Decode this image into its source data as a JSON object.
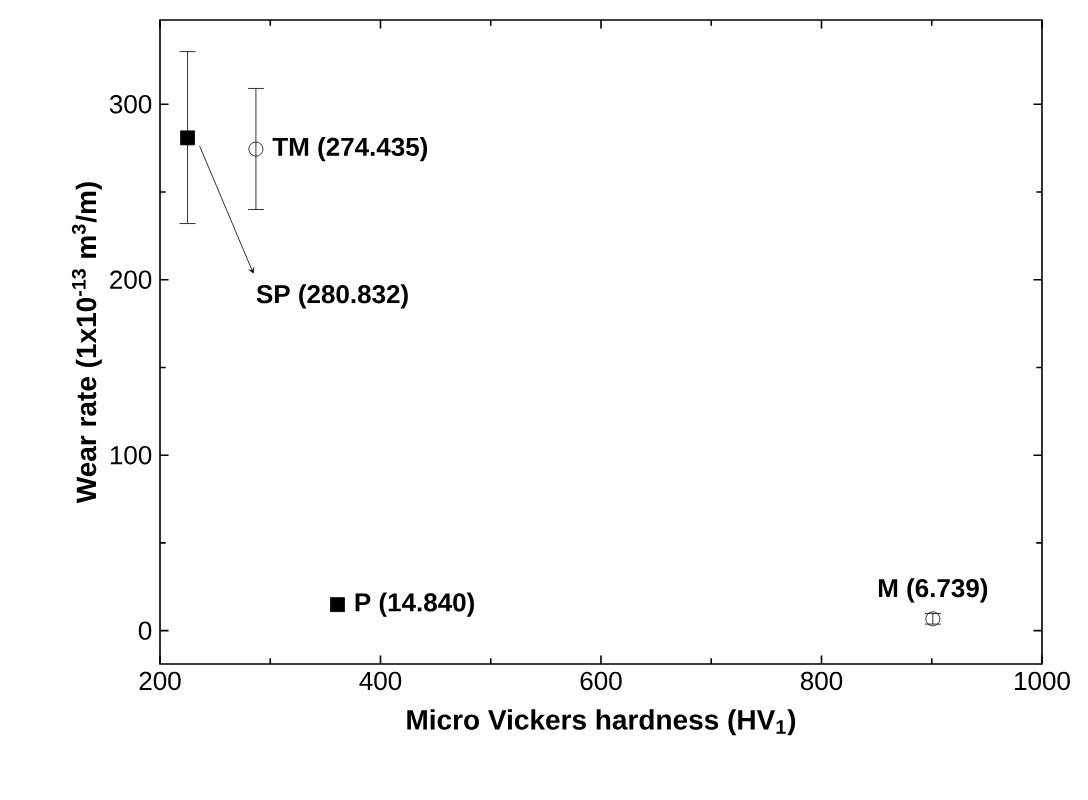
{
  "chart_data": {
    "type": "scatter",
    "xlabel": "Micro Vickers hardness (HV$_{1}$)",
    "ylabel": "Wear rate (1x10$^{-13}$ m$^{3}$/m)",
    "xlim": [
      200,
      1000
    ],
    "ylim": [
      -19,
      348
    ],
    "xticks": [
      200,
      400,
      600,
      800,
      1000
    ],
    "yticks": [
      0,
      100,
      200,
      300
    ],
    "series": [
      {
        "color": "#000000",
        "marker": "square",
        "x": [
          225,
          361
        ],
        "values": [
          280.832,
          14.84
        ],
        "errors": [
          [
            232,
            330
          ],
          null
        ]
      },
      {
        "color": "#000000",
        "marker": "circle",
        "x": [
          287,
          901
        ],
        "values": [
          274.435,
          6.739
        ],
        "errors": [
          [
            240,
            309
          ],
          3
        ]
      }
    ],
    "annotations": [
      {
        "text": "TM (274.435)",
        "x": 287,
        "y": 274.435
      },
      {
        "text": "SP (280.832)",
        "x": 225,
        "y": 280.832
      },
      {
        "text": "P (14.840)",
        "x": 361,
        "y": 14.84
      },
      {
        "text": "M (6.739)",
        "x": 901,
        "y": 6.739
      }
    ]
  }
}
